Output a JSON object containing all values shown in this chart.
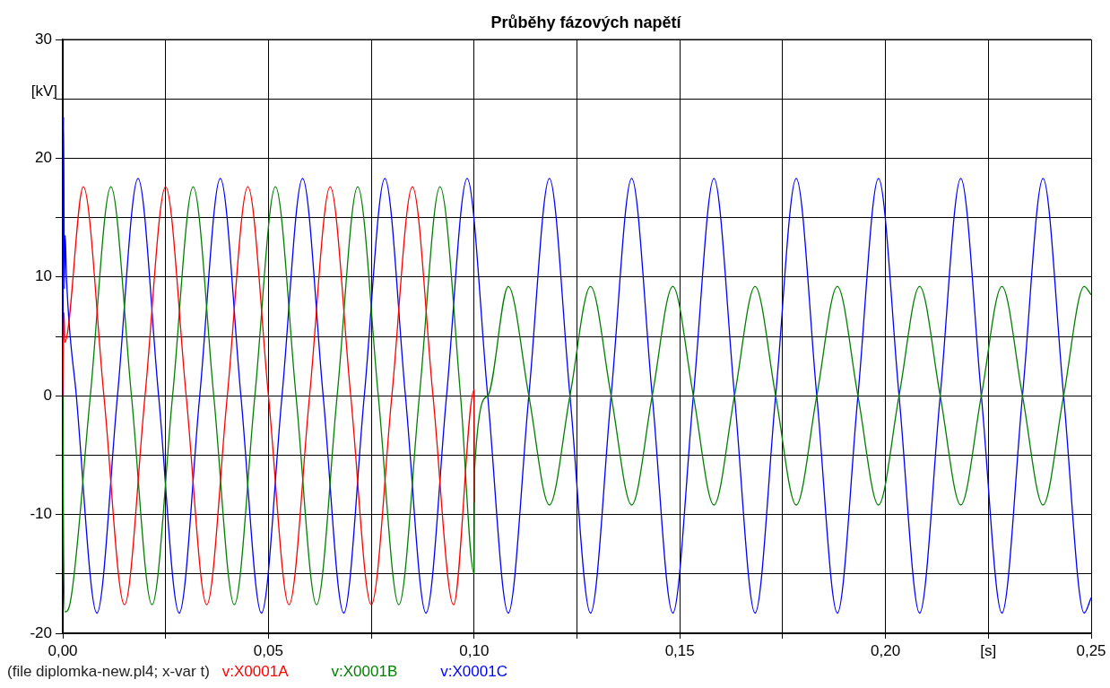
{
  "chart_data": {
    "type": "line",
    "title": "Průběhy fázových napětí",
    "xlabel": "[s]",
    "ylabel": "[kV]",
    "annotations": [
      "(file diplomka-new.pl4; x-var t)"
    ],
    "xlim": [
      0,
      0.25
    ],
    "ylim": [
      -20,
      30
    ],
    "xticks": [
      {
        "value": 0,
        "label": "0,00"
      },
      {
        "value": 0.025,
        "label": null
      },
      {
        "value": 0.05,
        "label": "0,05"
      },
      {
        "value": 0.075,
        "label": null
      },
      {
        "value": 0.1,
        "label": "0,10"
      },
      {
        "value": 0.125,
        "label": null
      },
      {
        "value": 0.15,
        "label": "0,15"
      },
      {
        "value": 0.175,
        "label": null
      },
      {
        "value": 0.2,
        "label": "0,20"
      },
      {
        "value": 0.225,
        "label": null
      },
      {
        "value": 0.25,
        "label": "0,25"
      }
    ],
    "yticks": [
      -20,
      {
        "value": -15,
        "label": null
      },
      -10,
      {
        "value": -5,
        "label": null
      },
      0,
      {
        "value": 5,
        "label": null
      },
      10,
      {
        "value": 15,
        "label": null
      },
      20,
      {
        "value": 25,
        "label": null
      },
      30
    ],
    "grid": true,
    "legend": "bottom left",
    "marker": "none",
    "series": [
      {
        "name": "v:X0001A",
        "color": "#ff0000",
        "x": [
          0,
          0.0003,
          0.0005,
          0.005,
          0.01,
          0.015,
          0.02,
          0.025,
          0.03,
          0.035,
          0.04,
          0.045,
          0.05,
          0.055,
          0.06,
          0.065,
          0.07,
          0.075,
          0.08,
          0.085,
          0.09,
          0.095,
          0.1,
          0.1001
        ],
        "values": [
          0,
          7,
          4.5,
          17.6,
          0,
          -17.6,
          0,
          17.6,
          0,
          -17.6,
          0,
          17.6,
          0,
          -17.6,
          0,
          17.6,
          0,
          -17.6,
          0,
          17.6,
          0,
          -17.6,
          0.5,
          -9
        ]
      },
      {
        "name": "v:X0001B",
        "color": "#008000",
        "x": [
          0,
          0.0002,
          0.0005,
          0.0017,
          0.0067,
          0.0117,
          0.0167,
          0.0217,
          0.0267,
          0.0317,
          0.0367,
          0.0417,
          0.0467,
          0.0517,
          0.0567,
          0.0617,
          0.0667,
          0.0717,
          0.0767,
          0.0817,
          0.0867,
          0.0917,
          0.0967,
          0.1,
          0.1001,
          0.1033,
          0.1083,
          0.1133,
          0.1183,
          0.1233,
          0.1283,
          0.1333,
          0.1383,
          0.1433,
          0.1483,
          0.1533,
          0.1583,
          0.1633,
          0.1683,
          0.1733,
          0.1783,
          0.1833,
          0.1883,
          0.1933,
          0.1983,
          0.2033,
          0.2083,
          0.2133,
          0.2183,
          0.2233,
          0.2283,
          0.2333,
          0.2383,
          0.2433,
          0.2483,
          0.25
        ],
        "values": [
          0,
          -12.5,
          -18.2,
          -17.6,
          0,
          17.6,
          0,
          -17.6,
          0,
          17.6,
          0,
          -17.6,
          0,
          17.6,
          0,
          -17.6,
          0,
          17.6,
          0,
          -17.6,
          0,
          17.6,
          0,
          -15,
          -6.3,
          0,
          9.2,
          0,
          -9.2,
          0,
          9.2,
          0,
          -9.2,
          0,
          9.2,
          0,
          -9.2,
          0,
          9.2,
          0,
          -9.2,
          0,
          9.2,
          0,
          -9.2,
          0,
          9.2,
          0,
          -9.2,
          0,
          9.2,
          0,
          -9.2,
          0,
          9.2,
          8.5
        ]
      },
      {
        "name": "v:X0001C",
        "color": "#0000ff",
        "x": [
          0,
          0.0002,
          0.0004,
          0.0006,
          0.0009,
          0.0033,
          0.0083,
          0.0133,
          0.0183,
          0.0233,
          0.0283,
          0.0333,
          0.0383,
          0.0433,
          0.0483,
          0.0533,
          0.0583,
          0.0633,
          0.0683,
          0.0733,
          0.0783,
          0.0833,
          0.0883,
          0.0933,
          0.0983,
          0.1033,
          0.1083,
          0.1133,
          0.1183,
          0.1233,
          0.1283,
          0.1333,
          0.1383,
          0.1433,
          0.1483,
          0.1533,
          0.1583,
          0.1633,
          0.1683,
          0.1733,
          0.1783,
          0.1833,
          0.1883,
          0.1933,
          0.1983,
          0.2033,
          0.2083,
          0.2133,
          0.2183,
          0.2233,
          0.2283,
          0.2333,
          0.2383,
          0.2433,
          0.2483,
          0.25
        ],
        "values": [
          0,
          23.5,
          9,
          13.5,
          10,
          0,
          -18.3,
          0,
          18.3,
          0,
          -18.3,
          0,
          18.3,
          0,
          -18.3,
          0,
          18.3,
          0,
          -18.3,
          0,
          18.3,
          0,
          -18.3,
          0,
          18.3,
          0,
          -18.3,
          0,
          18.3,
          0,
          -18.3,
          0,
          18.3,
          0,
          -18.3,
          0,
          18.3,
          0,
          -18.3,
          0,
          18.3,
          0,
          -18.3,
          0,
          18.3,
          0,
          -18.3,
          0,
          18.3,
          0,
          -18.3,
          0,
          18.3,
          0,
          -18.3,
          -17
        ]
      }
    ]
  }
}
